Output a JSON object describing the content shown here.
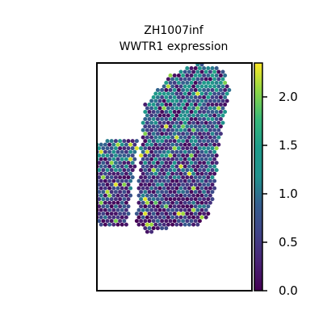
{
  "chart_data": {
    "type": "scatter",
    "subtype": "spatial-hexbin",
    "title": "ZH1007inf",
    "subtitle": "WWTR1 expression",
    "xlabel": "",
    "ylabel": "",
    "colorbar": {
      "colormap": "viridis",
      "range": [
        0.0,
        2.35
      ],
      "ticks": [
        0.0,
        0.5,
        1.0,
        1.5,
        2.0
      ],
      "tick_labels": [
        "0.0",
        "0.5",
        "1.0",
        "1.5",
        "2.0"
      ]
    },
    "axes_visible": false,
    "grid": false,
    "point_color_min": "#440154",
    "point_color_max": "#fde725",
    "description_counts_note": "",
    "tissue": {
      "left_lobe_outline": [
        [
          -1.5,
          0.6
        ],
        [
          -0.85,
          0.6
        ],
        [
          -0.9,
          0.2
        ],
        [
          -1.0,
          -0.2
        ],
        [
          -1.05,
          -0.55
        ],
        [
          -1.1,
          -0.9
        ],
        [
          -1.7,
          -0.95
        ],
        [
          -2.0,
          -0.75
        ],
        [
          -2.1,
          -0.3
        ],
        [
          -2.05,
          0.2
        ],
        [
          -1.85,
          0.55
        ]
      ],
      "right_lobe_outline": [
        [
          -0.7,
          1.2
        ],
        [
          -0.1,
          1.75
        ],
        [
          0.6,
          1.95
        ],
        [
          1.15,
          1.85
        ],
        [
          1.35,
          1.55
        ],
        [
          1.2,
          0.9
        ],
        [
          1.05,
          0.3
        ],
        [
          1.0,
          -0.2
        ],
        [
          0.85,
          -0.7
        ],
        [
          0.6,
          -0.95
        ],
        [
          0.0,
          -0.95
        ],
        [
          -0.6,
          -1.05
        ],
        [
          -0.9,
          -0.9
        ],
        [
          -0.85,
          -0.4
        ],
        [
          -0.8,
          0.2
        ],
        [
          -0.75,
          0.8
        ]
      ]
    }
  }
}
